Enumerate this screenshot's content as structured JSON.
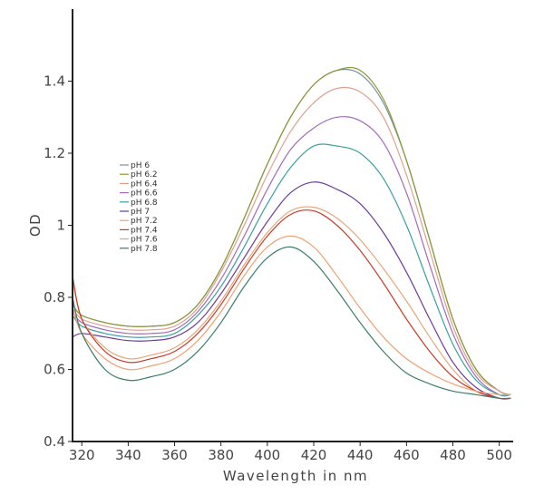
{
  "chart_data": {
    "type": "line",
    "title": "",
    "xlabel": "Wavelength in nm",
    "ylabel": "OD",
    "xlim": [
      316,
      506
    ],
    "ylim": [
      0.4,
      1.6
    ],
    "x_ticks": [
      320,
      340,
      360,
      380,
      400,
      420,
      440,
      460,
      480,
      500
    ],
    "y_ticks": [
      0.4,
      0.6,
      0.8,
      1,
      1.2,
      1.4
    ],
    "y_tick_labels": [
      "0.4",
      "0.6",
      "0.8",
      "1",
      "1.2",
      "1.4"
    ],
    "grid": false,
    "legend_position": "left",
    "x": [
      316,
      320,
      330,
      340,
      350,
      360,
      370,
      380,
      390,
      400,
      410,
      420,
      430,
      440,
      450,
      460,
      470,
      480,
      490,
      500,
      505
    ],
    "series": [
      {
        "name": "pH 6",
        "color": "#7a8fa8",
        "values": [
          0.78,
          0.75,
          0.73,
          0.72,
          0.72,
          0.73,
          0.78,
          0.88,
          1.02,
          1.17,
          1.3,
          1.39,
          1.43,
          1.42,
          1.34,
          1.18,
          0.96,
          0.74,
          0.6,
          0.54,
          0.53
        ]
      },
      {
        "name": "pH 6.2",
        "color": "#8a9a2e",
        "values": [
          0.78,
          0.75,
          0.73,
          0.72,
          0.72,
          0.73,
          0.78,
          0.88,
          1.02,
          1.17,
          1.3,
          1.39,
          1.43,
          1.43,
          1.35,
          1.18,
          0.96,
          0.74,
          0.6,
          0.54,
          0.53
        ]
      },
      {
        "name": "pH 6.4",
        "color": "#e0a090",
        "values": [
          0.77,
          0.74,
          0.72,
          0.71,
          0.71,
          0.72,
          0.77,
          0.87,
          1.0,
          1.14,
          1.26,
          1.34,
          1.38,
          1.37,
          1.3,
          1.14,
          0.93,
          0.72,
          0.59,
          0.54,
          0.53
        ]
      },
      {
        "name": "pH 6.6",
        "color": "#a36ab8",
        "values": [
          0.76,
          0.73,
          0.71,
          0.7,
          0.7,
          0.71,
          0.76,
          0.85,
          0.97,
          1.1,
          1.21,
          1.27,
          1.3,
          1.29,
          1.23,
          1.09,
          0.89,
          0.7,
          0.58,
          0.53,
          0.53
        ]
      },
      {
        "name": "pH 6.8",
        "color": "#3aa0a0",
        "values": [
          0.75,
          0.72,
          0.7,
          0.69,
          0.69,
          0.7,
          0.75,
          0.83,
          0.94,
          1.06,
          1.16,
          1.22,
          1.22,
          1.2,
          1.13,
          1.0,
          0.83,
          0.67,
          0.57,
          0.53,
          0.53
        ]
      },
      {
        "name": "pH 7",
        "color": "#6e3a9a",
        "values": [
          0.69,
          0.7,
          0.69,
          0.68,
          0.68,
          0.69,
          0.73,
          0.81,
          0.91,
          1.01,
          1.09,
          1.12,
          1.1,
          1.06,
          0.98,
          0.87,
          0.74,
          0.62,
          0.55,
          0.52,
          0.52
        ]
      },
      {
        "name": "pH 7.2",
        "color": "#e5a87a",
        "values": [
          0.85,
          0.74,
          0.66,
          0.63,
          0.64,
          0.66,
          0.71,
          0.79,
          0.89,
          0.98,
          1.04,
          1.05,
          1.02,
          0.96,
          0.88,
          0.79,
          0.69,
          0.6,
          0.54,
          0.52,
          0.52
        ]
      },
      {
        "name": "pH 7.4",
        "color": "#c83c28",
        "values": [
          0.86,
          0.74,
          0.65,
          0.62,
          0.63,
          0.65,
          0.7,
          0.78,
          0.88,
          0.97,
          1.03,
          1.04,
          1.0,
          0.93,
          0.84,
          0.74,
          0.65,
          0.58,
          0.54,
          0.52,
          0.52
        ]
      },
      {
        "name": "pH 7.6",
        "color": "#f0a070",
        "values": [
          0.77,
          0.7,
          0.63,
          0.6,
          0.61,
          0.63,
          0.68,
          0.76,
          0.86,
          0.94,
          0.97,
          0.94,
          0.86,
          0.77,
          0.69,
          0.63,
          0.59,
          0.56,
          0.54,
          0.53,
          0.53
        ]
      },
      {
        "name": "pH 7.8",
        "color": "#3c7c6a",
        "values": [
          0.8,
          0.7,
          0.6,
          0.57,
          0.58,
          0.6,
          0.65,
          0.73,
          0.83,
          0.91,
          0.94,
          0.9,
          0.82,
          0.73,
          0.65,
          0.59,
          0.56,
          0.54,
          0.53,
          0.52,
          0.52
        ]
      }
    ]
  }
}
